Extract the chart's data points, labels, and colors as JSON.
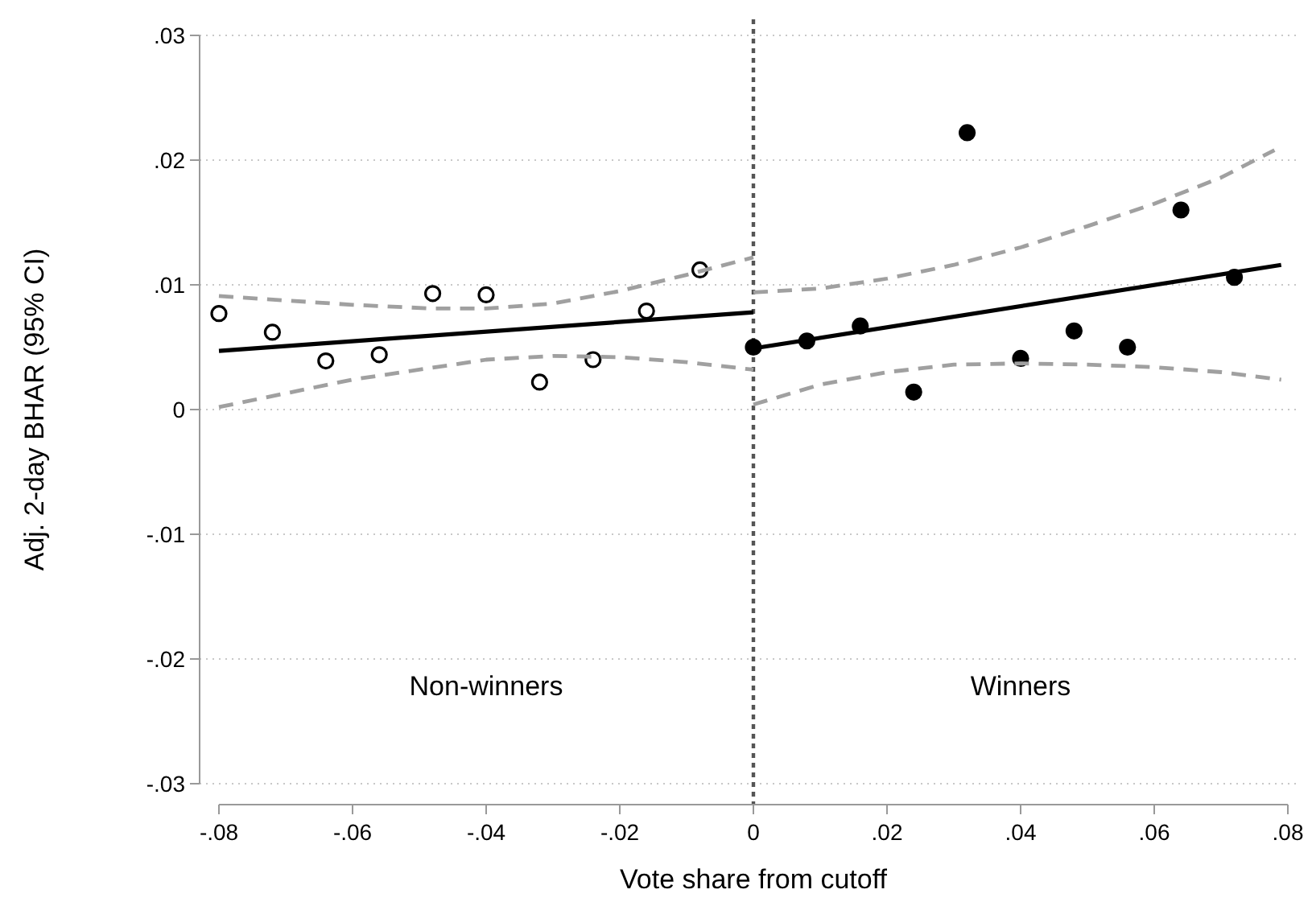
{
  "chart_data": {
    "type": "scatter",
    "xlabel": "Vote share from cutoff",
    "ylabel": "Adj. 2-day BHAR (95% CI)",
    "xlim": [
      -0.08,
      0.08
    ],
    "xticks": [
      {
        "value": -0.08,
        "label": "-.08"
      },
      {
        "value": -0.06,
        "label": "-.06"
      },
      {
        "value": -0.04,
        "label": "-.04"
      },
      {
        "value": -0.02,
        "label": "-.02"
      },
      0,
      {
        "value": 0.02,
        "label": ".02"
      },
      {
        "value": 0.04,
        "label": ".04"
      },
      {
        "value": 0.06,
        "label": ".06"
      },
      {
        "value": 0.08,
        "label": ".08"
      }
    ],
    "ylim": [
      -0.03,
      0.03
    ],
    "yticks": [
      {
        "value": -0.03,
        "label": "-.03"
      },
      {
        "value": -0.02,
        "label": "-.02"
      },
      {
        "value": -0.01,
        "label": "-.01"
      },
      0,
      {
        "value": 0.01,
        "label": ".01"
      },
      {
        "value": 0.02,
        "label": ".02"
      },
      {
        "value": 0.03,
        "label": ".03"
      }
    ],
    "grid": "y",
    "annotations": [
      "Non-winners",
      "Winners"
    ],
    "ref_lines": [
      {
        "axis": "x",
        "value": 0,
        "color": "#555555",
        "line_style": "dotted"
      }
    ],
    "series": [
      {
        "marker": "circle",
        "color": "#ffffff",
        "x": [
          -0.08,
          -0.072,
          -0.064,
          -0.056,
          -0.048,
          -0.04,
          -0.032,
          -0.024,
          -0.016,
          -0.008
        ],
        "values": [
          0.0077,
          0.0062,
          0.0039,
          0.0044,
          0.0093,
          0.0092,
          0.0022,
          0.004,
          0.0079,
          0.0112
        ]
      },
      {
        "marker": "circle",
        "color": "#000000",
        "x": [
          0,
          0.008,
          0.016,
          0.024,
          0.032,
          0.04,
          0.048,
          0.056,
          0.064,
          0.072
        ],
        "values": [
          0.005,
          0.0055,
          0.0067,
          0.0014,
          0.0222,
          0.0041,
          0.0063,
          0.005,
          0.016,
          0.0106
        ]
      },
      {
        "type": "line",
        "line_style": "solid",
        "color": "#000000",
        "x": [
          -0.08,
          0
        ],
        "values": [
          0.0047,
          0.0078
        ]
      },
      {
        "type": "line",
        "line_style": "solid",
        "color": "#000000",
        "x": [
          0,
          0.079
        ],
        "values": [
          0.0049,
          0.0116
        ]
      },
      {
        "type": "line",
        "line_style": "dashed",
        "color": "#a0a0a0",
        "x": [
          -0.08,
          -0.06,
          -0.048,
          -0.04,
          -0.03,
          -0.02,
          -0.01,
          0
        ],
        "values": [
          0.0091,
          0.0084,
          0.0081,
          0.0081,
          0.0085,
          0.0095,
          0.0108,
          0.0122
        ]
      },
      {
        "type": "line",
        "line_style": "dashed",
        "color": "#a0a0a0",
        "x": [
          -0.08,
          -0.06,
          -0.04,
          -0.03,
          -0.02,
          -0.01,
          0
        ],
        "values": [
          0.0002,
          0.0024,
          0.004,
          0.0043,
          0.0042,
          0.0038,
          0.0032
        ]
      },
      {
        "type": "line",
        "line_style": "dashed",
        "color": "#a0a0a0",
        "x": [
          0,
          0.01,
          0.02,
          0.03,
          0.04,
          0.05,
          0.06,
          0.07,
          0.078
        ],
        "values": [
          0.0094,
          0.0097,
          0.0105,
          0.0116,
          0.013,
          0.0147,
          0.0165,
          0.0186,
          0.0208
        ]
      },
      {
        "type": "line",
        "line_style": "dashed",
        "color": "#a0a0a0",
        "x": [
          0,
          0.01,
          0.02,
          0.03,
          0.04,
          0.05,
          0.06,
          0.07,
          0.079
        ],
        "values": [
          0.0004,
          0.002,
          0.003,
          0.0036,
          0.0037,
          0.0036,
          0.0034,
          0.003,
          0.0024
        ]
      }
    ]
  }
}
